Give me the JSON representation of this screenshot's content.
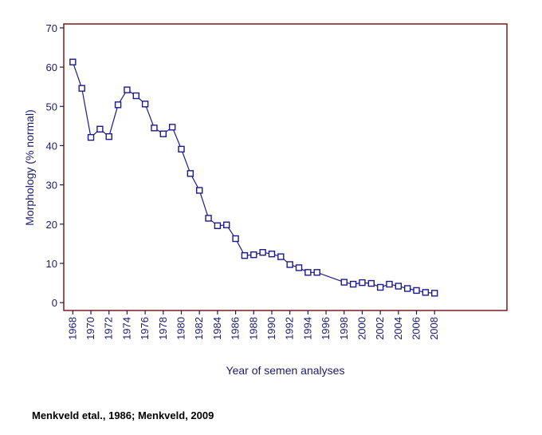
{
  "chart_data": {
    "type": "line",
    "title": "",
    "xlabel": "Year of semen analyses",
    "ylabel": "Morphology (% normal)",
    "xlim": [
      1967,
      2016
    ],
    "ylim": [
      -2,
      71
    ],
    "y_ticks": [
      0,
      10,
      20,
      30,
      40,
      50,
      60,
      70
    ],
    "x_tick_labels": [
      "1968",
      "1970",
      "1972",
      "1974",
      "1976",
      "1978",
      "1980",
      "1982",
      "1984",
      "1986",
      "1988",
      "1990",
      "1992",
      "1994",
      "1996",
      "1998",
      "2000",
      "2002",
      "2004",
      "2006",
      "2008"
    ],
    "grid": false,
    "legend": "none",
    "series": [
      {
        "marker": "open-square",
        "color": "#1a1a8c",
        "points": [
          [
            1968,
            61.3
          ],
          [
            1969,
            54.6
          ],
          [
            1970,
            42.1
          ],
          [
            1971,
            44.2
          ],
          [
            1972,
            42.3
          ],
          [
            1973,
            50.4
          ],
          [
            1974,
            54.2
          ],
          [
            1975,
            52.7
          ],
          [
            1976,
            50.6
          ],
          [
            1977,
            44.5
          ],
          [
            1978,
            43.0
          ],
          [
            1979,
            44.7
          ],
          [
            1980,
            39.1
          ],
          [
            1981,
            32.9
          ],
          [
            1982,
            28.6
          ],
          [
            1983,
            21.5
          ],
          [
            1984,
            19.6
          ],
          [
            1985,
            19.8
          ],
          [
            1986,
            16.3
          ],
          [
            1987,
            12.0
          ],
          [
            1988,
            12.2
          ],
          [
            1989,
            12.8
          ],
          [
            1990,
            12.4
          ],
          [
            1991,
            11.7
          ],
          [
            1992,
            9.7
          ],
          [
            1993,
            8.9
          ],
          [
            1994,
            7.7
          ],
          [
            1995,
            7.7
          ],
          [
            1998,
            5.2
          ],
          [
            1999,
            4.7
          ],
          [
            2000,
            5.1
          ],
          [
            2001,
            4.9
          ],
          [
            2002,
            3.9
          ],
          [
            2003,
            4.7
          ],
          [
            2004,
            4.2
          ],
          [
            2005,
            3.6
          ],
          [
            2006,
            3.1
          ],
          [
            2007,
            2.6
          ],
          [
            2008,
            2.4
          ]
        ]
      }
    ]
  },
  "source_note": "Menkveld etal., 1986; Menkveld, 2009",
  "colors": {
    "frame": "#7a1a1a",
    "line": "#1a1a8c",
    "text": "#1a1a6e"
  }
}
